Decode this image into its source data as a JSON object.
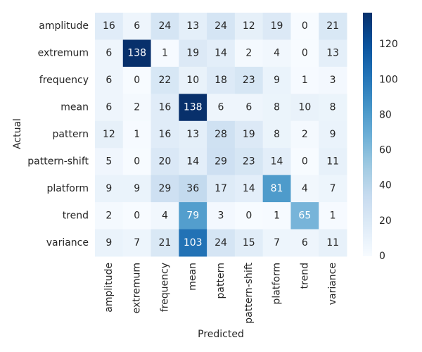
{
  "chart_data": {
    "type": "heatmap",
    "title": "",
    "xlabel": "Predicted",
    "ylabel": "Actual",
    "x_categories": [
      "amplitude",
      "extremum",
      "frequency",
      "mean",
      "pattern",
      "pattern-shift",
      "platform",
      "trend",
      "variance"
    ],
    "y_categories": [
      "amplitude",
      "extremum",
      "frequency",
      "mean",
      "pattern",
      "pattern-shift",
      "platform",
      "trend",
      "variance"
    ],
    "values": [
      [
        16,
        6,
        24,
        13,
        24,
        12,
        19,
        0,
        21
      ],
      [
        6,
        138,
        1,
        19,
        14,
        2,
        4,
        0,
        13
      ],
      [
        6,
        0,
        22,
        10,
        18,
        23,
        9,
        1,
        3
      ],
      [
        6,
        2,
        16,
        138,
        6,
        6,
        8,
        10,
        8
      ],
      [
        12,
        1,
        16,
        13,
        28,
        19,
        8,
        2,
        9
      ],
      [
        5,
        0,
        20,
        14,
        29,
        23,
        14,
        0,
        11
      ],
      [
        9,
        9,
        29,
        36,
        17,
        14,
        81,
        4,
        7
      ],
      [
        2,
        0,
        4,
        79,
        3,
        0,
        1,
        65,
        1
      ],
      [
        9,
        7,
        21,
        103,
        24,
        15,
        7,
        6,
        11
      ]
    ],
    "colorbar": {
      "min": 0,
      "max": 138,
      "ticks": [
        0,
        20,
        40,
        60,
        80,
        100,
        120
      ],
      "colormap": "Blues"
    },
    "grid": false
  }
}
